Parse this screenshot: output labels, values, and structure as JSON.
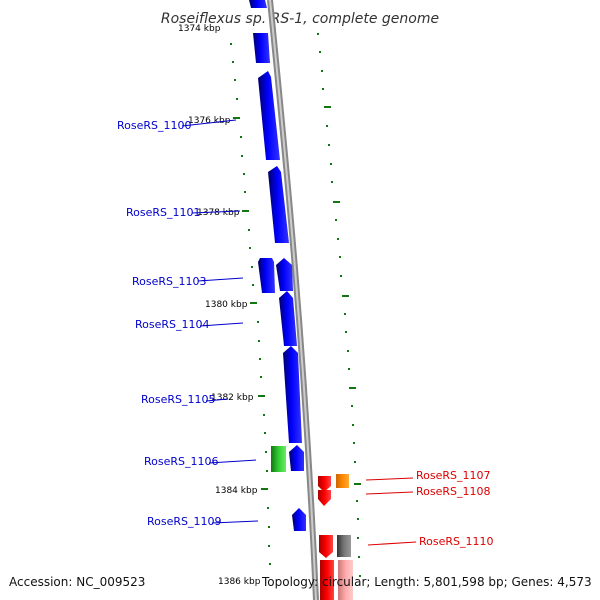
{
  "title": "Roseiflexus sp. RS-1, complete genome",
  "footer": {
    "accession": "Accession: NC_009523",
    "topology": "Topology: circular; Length: 5,801,598 bp; Genes: 4,573"
  },
  "scale_labels": [
    "1374 kbp",
    "1376 kbp",
    "1378 kbp",
    "1380 kbp",
    "1382 kbp",
    "1384 kbp",
    "1386 kbp"
  ],
  "gene_labels": [
    {
      "id": "RoseRS_1100",
      "text": "RoseRS_1100",
      "strand": "left"
    },
    {
      "id": "RoseRS_1101",
      "text": "RoseRS_1101",
      "strand": "left"
    },
    {
      "id": "RoseRS_1103",
      "text": "RoseRS_1103",
      "strand": "left"
    },
    {
      "id": "RoseRS_1104",
      "text": "RoseRS_1104",
      "strand": "left"
    },
    {
      "id": "RoseRS_1105",
      "text": "RoseRS_1105",
      "strand": "left"
    },
    {
      "id": "RoseRS_1106",
      "text": "RoseRS_1106",
      "strand": "left"
    },
    {
      "id": "RoseRS_1109",
      "text": "RoseRS_1109",
      "strand": "left"
    },
    {
      "id": "RoseRS_1107",
      "text": "RoseRS_1107",
      "strand": "right"
    },
    {
      "id": "RoseRS_1108",
      "text": "RoseRS_1108",
      "strand": "right"
    },
    {
      "id": "RoseRS_1110",
      "text": "RoseRS_1110",
      "strand": "right"
    }
  ],
  "colors": {
    "gene_blue": "#0000ee",
    "gene_green": "#22bb22",
    "gene_red": "#ee0000",
    "gene_orange": "#ff8800",
    "gene_grey": "#666666",
    "gene_pink": "#ee9999",
    "backbone": "#999999",
    "tick": "#117711"
  }
}
